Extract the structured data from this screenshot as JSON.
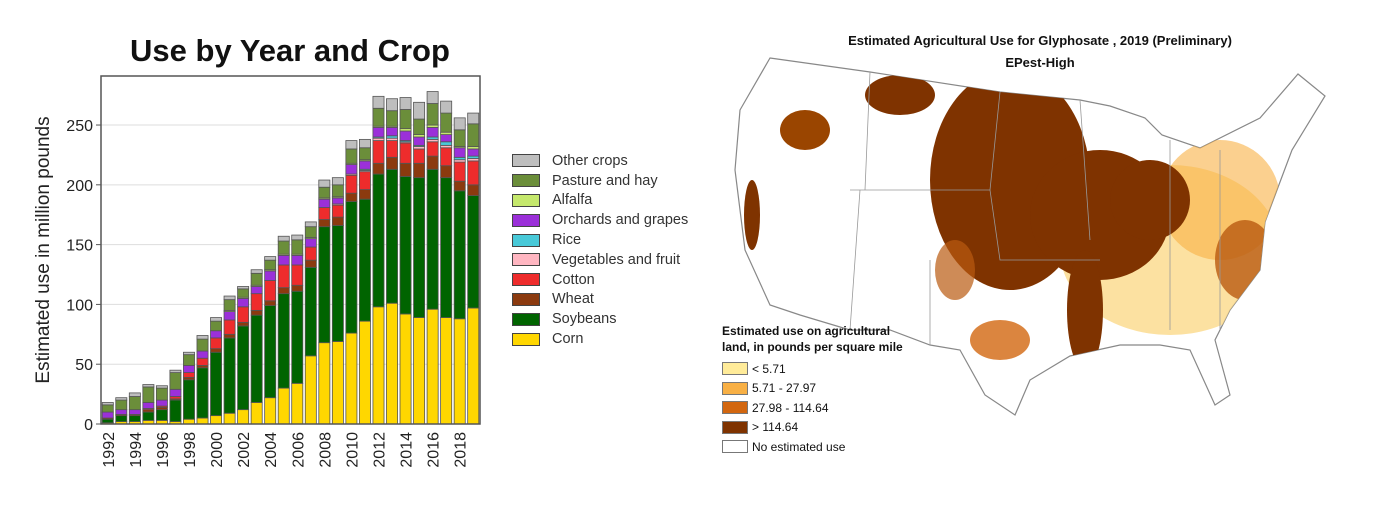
{
  "chart_data": [
    {
      "type": "bar",
      "stacked": true,
      "title": "Use by Year and Crop",
      "xlabel": "",
      "ylabel": "Estimated use in million pounds",
      "ylim": [
        0,
        291
      ],
      "yticks": [
        0,
        50,
        100,
        150,
        200,
        250
      ],
      "grid": true,
      "legend_position": "right",
      "categories": [
        1992,
        1993,
        1994,
        1995,
        1996,
        1997,
        1998,
        1999,
        2000,
        2001,
        2002,
        2003,
        2004,
        2005,
        2006,
        2007,
        2008,
        2009,
        2010,
        2011,
        2012,
        2013,
        2014,
        2015,
        2016,
        2017,
        2018,
        2019
      ],
      "xtick_labels": [
        "1992",
        "1994",
        "1996",
        "1998",
        "2000",
        "2002",
        "2004",
        "2006",
        "2008",
        "2010",
        "2012",
        "2014",
        "2016",
        "2018"
      ],
      "series": [
        {
          "name": "Corn",
          "color": "#FFD700",
          "values": [
            1,
            2,
            2,
            3,
            3,
            2,
            4,
            5,
            7,
            9,
            12,
            18,
            22,
            30,
            34,
            57,
            68,
            69,
            76,
            86,
            98,
            101,
            92,
            89,
            96,
            89,
            88,
            97
          ]
        },
        {
          "name": "Soybeans",
          "color": "#006400",
          "values": [
            3,
            5,
            5,
            7,
            9,
            18,
            33,
            42,
            53,
            63,
            70,
            73,
            77,
            79,
            77,
            74,
            97,
            97,
            110,
            102,
            111,
            112,
            115,
            117,
            117,
            117,
            107,
            94
          ]
        },
        {
          "name": "Wheat",
          "color": "#8B3A0F",
          "values": [
            1,
            1,
            1,
            2,
            2,
            1,
            2,
            2,
            3,
            3,
            3,
            4,
            4,
            5,
            5,
            6,
            6,
            7,
            7,
            8,
            9,
            10,
            11,
            12,
            11,
            10,
            8,
            9
          ]
        },
        {
          "name": "Cotton",
          "color": "#EE2C2C",
          "values": [
            0,
            0,
            0,
            1,
            1,
            2,
            4,
            6,
            9,
            12,
            13,
            14,
            17,
            19,
            17,
            11,
            10,
            10,
            15,
            15,
            19,
            14,
            17,
            12,
            12,
            15,
            16,
            20
          ]
        },
        {
          "name": "Vegetables and fruit",
          "color": "#FFB6C1",
          "values": [
            0,
            0,
            0,
            0,
            0,
            0,
            0,
            0,
            0,
            0,
            0,
            0,
            0,
            0,
            0,
            0,
            0,
            1,
            1,
            1,
            2,
            2,
            1,
            2,
            2,
            2,
            2,
            2
          ]
        },
        {
          "name": "Rice",
          "color": "#48C9D8",
          "values": [
            0,
            0,
            0,
            0,
            0,
            0,
            0,
            0,
            0,
            0,
            0,
            0,
            0,
            0,
            0,
            0,
            0,
            0,
            0,
            1,
            1,
            2,
            1,
            1,
            2,
            3,
            2,
            2
          ]
        },
        {
          "name": "Orchards and grapes",
          "color": "#9B30D9",
          "values": [
            5,
            4,
            4,
            5,
            5,
            6,
            6,
            6,
            6,
            7,
            7,
            6,
            8,
            8,
            8,
            7,
            7,
            5,
            8,
            7,
            8,
            7,
            8,
            7,
            8,
            6,
            8,
            6
          ]
        },
        {
          "name": "Alfalfa",
          "color": "#C5E86C",
          "values": [
            0,
            0,
            0,
            0,
            0,
            0,
            0,
            0,
            0,
            1,
            1,
            1,
            1,
            1,
            1,
            1,
            1,
            1,
            1,
            1,
            1,
            1,
            2,
            2,
            2,
            2,
            1,
            2
          ]
        },
        {
          "name": "Pasture and hay",
          "color": "#6B8E3A",
          "values": [
            6,
            8,
            11,
            13,
            10,
            14,
            9,
            10,
            8,
            9,
            7,
            10,
            8,
            11,
            12,
            9,
            9,
            10,
            12,
            10,
            15,
            13,
            16,
            13,
            18,
            16,
            14,
            19
          ]
        },
        {
          "name": "Other crops",
          "color": "#BEBEBE",
          "values": [
            2,
            2,
            3,
            2,
            2,
            2,
            2,
            3,
            3,
            3,
            2,
            3,
            3,
            4,
            4,
            4,
            6,
            6,
            7,
            7,
            10,
            10,
            10,
            14,
            10,
            10,
            10,
            9
          ]
        }
      ]
    },
    {
      "type": "map",
      "title": "Estimated Agricultural Use for Glyphosate , 2019 (Preliminary)",
      "subtitle": "EPest-High",
      "legend_title": "Estimated use on agricultural land, in pounds per square mile",
      "legend": [
        {
          "label": "< 5.71",
          "color": "#FFEB99"
        },
        {
          "label": "5.71 - 27.97",
          "color": "#F8B045"
        },
        {
          "label": "27.98 - 114.64",
          "color": "#D2660F"
        },
        {
          "label": "> 114.64",
          "color": "#7F3300"
        },
        {
          "label": "No estimated use",
          "color": "#FFFFFF"
        }
      ]
    }
  ]
}
